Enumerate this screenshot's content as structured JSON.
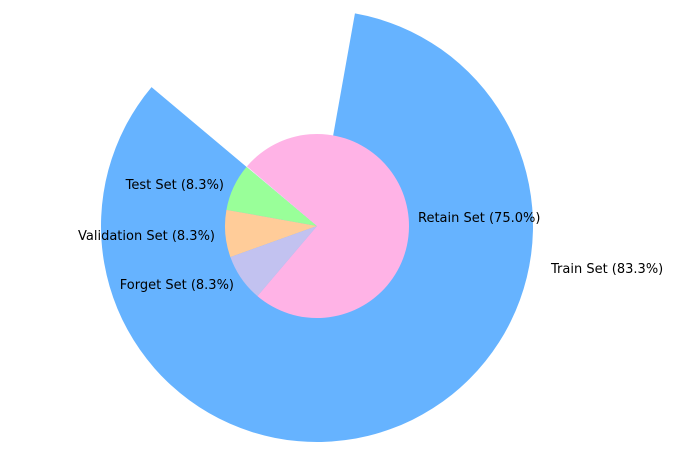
{
  "chart_data": {
    "type": "pie",
    "title": "",
    "rings": [
      {
        "ring": "outer",
        "slices": [
          {
            "label": "Train Set (83.3%)",
            "value": 83.3,
            "color": "#66b3ff"
          }
        ]
      },
      {
        "ring": "inner",
        "slices": [
          {
            "label": "Test Set (8.3%)",
            "value": 8.3,
            "color": "#99ff99"
          },
          {
            "label": "Validation Set (8.3%)",
            "value": 8.3,
            "color": "#ffcc99"
          },
          {
            "label": "Forget Set (8.3%)",
            "value": 8.3,
            "color": "#c2c2f0"
          },
          {
            "label": "Retain Set (75.0%)",
            "value": 75.0,
            "color": "#ffb3e6"
          }
        ]
      }
    ],
    "legend": "none"
  }
}
